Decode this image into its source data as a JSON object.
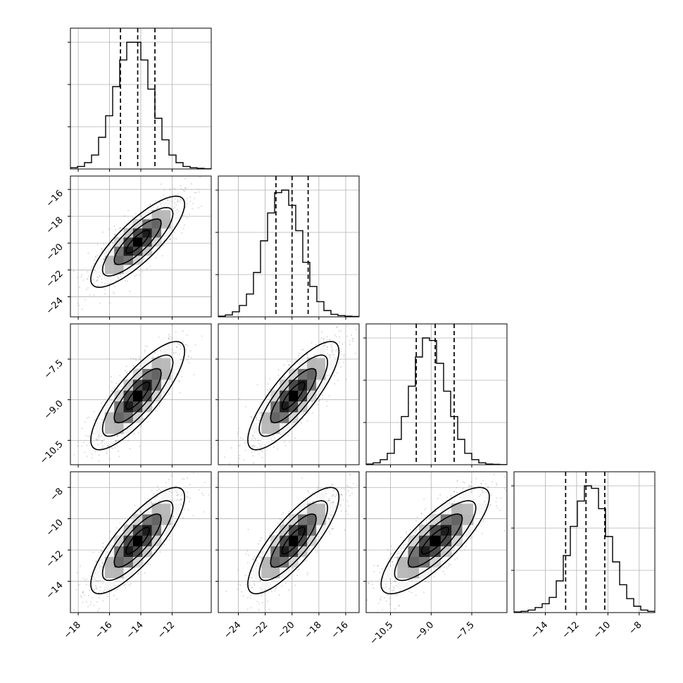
{
  "chart_data": {
    "type": "corner",
    "n_params": 4,
    "params": [
      {
        "mean": -14.2,
        "std": 1.5,
        "range": [
          -18.5,
          -9.5
        ],
        "ticks": [
          -18,
          -16,
          -14,
          -12
        ],
        "quantiles": [
          -15.3,
          -14.2,
          -13.1
        ],
        "hist": [
          1,
          2,
          5,
          11,
          25,
          42,
          65,
          86,
          100,
          100,
          86,
          63,
          40,
          23,
          11,
          5,
          2,
          1,
          0.5,
          0.2
        ]
      },
      {
        "mean": -19.9,
        "std": 1.7,
        "range": [
          -25.5,
          -15.0
        ],
        "ticks": [
          -24,
          -22,
          -20,
          -18,
          -16
        ],
        "quantiles": [
          -21.2,
          -20.0,
          -18.8
        ],
        "hist": [
          0.5,
          1.5,
          4,
          9,
          18,
          35,
          60,
          82,
          98,
          100,
          88,
          68,
          43,
          24,
          12,
          5,
          2,
          1,
          0.5,
          0.3
        ]
      },
      {
        "mean": -8.85,
        "std": 1.0,
        "range": [
          -11.4,
          -6.2
        ],
        "ticks": [
          -10.5,
          -9.0,
          -7.5
        ],
        "quantiles": [
          -9.55,
          -8.85,
          -8.15
        ],
        "hist": [
          0.5,
          1.5,
          4,
          9,
          20,
          38,
          62,
          85,
          100,
          98,
          80,
          58,
          38,
          20,
          9,
          4,
          1.5,
          0.5,
          0.3,
          0.1
        ]
      },
      {
        "mean": -11.4,
        "std": 1.7,
        "range": [
          -16.0,
          -7.0
        ],
        "ticks": [
          -14,
          -12,
          -10,
          -8
        ],
        "quantiles": [
          -12.7,
          -11.4,
          -10.2
        ],
        "hist": [
          0.5,
          1,
          2,
          4,
          7,
          12,
          25,
          45,
          68,
          88,
          100,
          98,
          82,
          60,
          40,
          22,
          11,
          5,
          2,
          1
        ]
      }
    ],
    "correlation": 0.82,
    "y_ticks": {
      "1": [
        -16,
        -18,
        -20,
        -22,
        -24
      ],
      "2": [
        -7.5,
        -9.0,
        -10.5
      ],
      "3": [
        -8,
        -10,
        -12,
        -14
      ]
    },
    "tick_labels": {
      "0": [
        "−18",
        "−16",
        "−14",
        "−12"
      ],
      "1": [
        "−24",
        "−22",
        "−20",
        "−18",
        "−16"
      ],
      "2": [
        "−10.5",
        "−9.0",
        "−7.5"
      ],
      "3": [
        "−14",
        "−12",
        "−10",
        "−8"
      ]
    },
    "y_tick_labels": {
      "1": [
        "−16",
        "−18",
        "−20",
        "−22",
        "−24"
      ],
      "2": [
        "−7.5",
        "−9.0",
        "−10.5"
      ],
      "3": [
        "−8",
        "−10",
        "−12",
        "−14"
      ]
    },
    "grid": true,
    "title": "",
    "xlabel": "",
    "ylabel": ""
  }
}
